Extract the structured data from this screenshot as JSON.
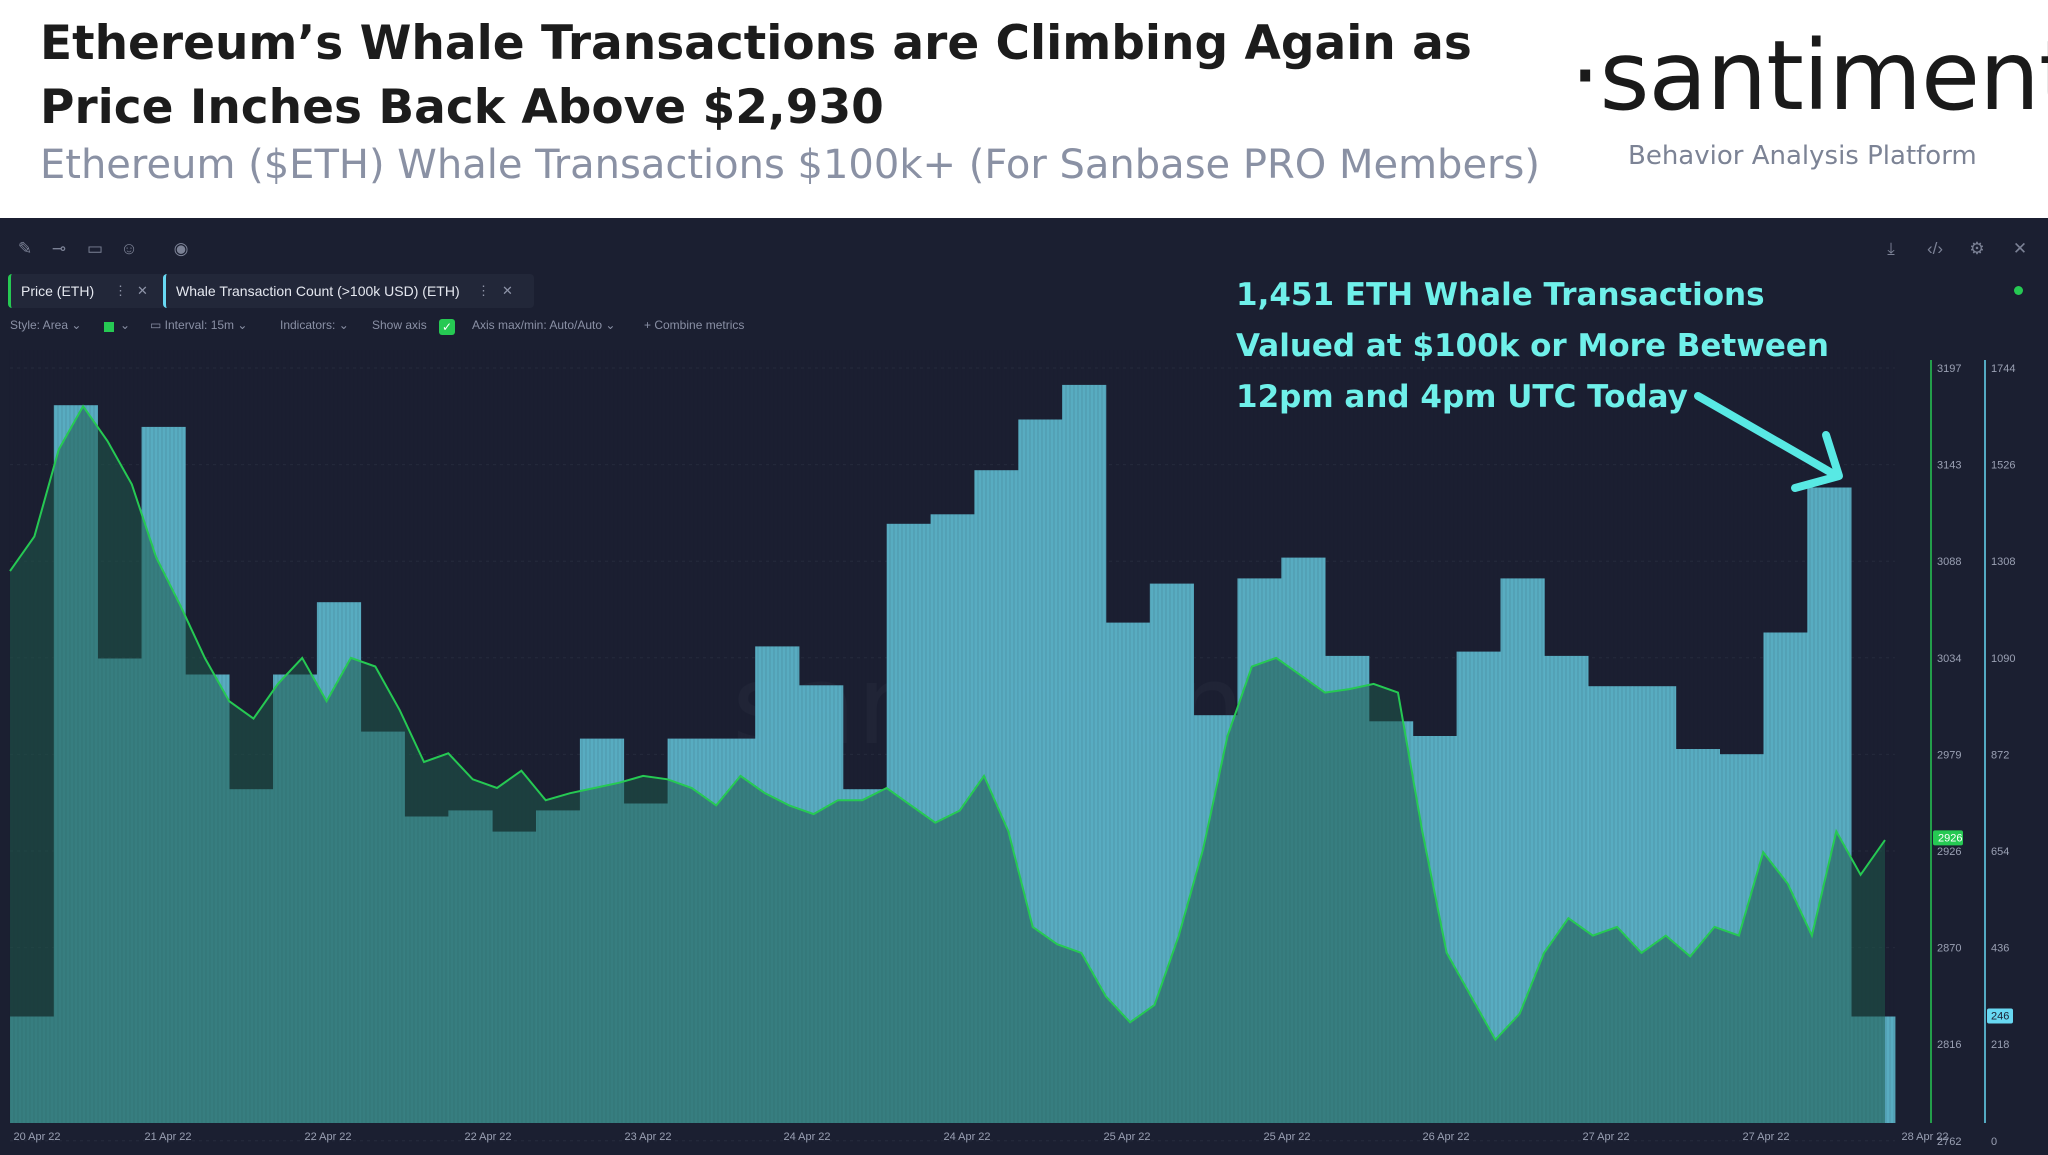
{
  "header": {
    "title": "Ethereum’s Whale Transactions are Climbing Again as Price Inches Back Above $2,930",
    "subtitle": "Ethereum ($ETH) Whale Transactions $100k+ (For Sanbase PRO Members)",
    "brand": "·santiment·",
    "brand_tagline": "Behavior Analysis Platform"
  },
  "toolbar": {
    "left_icons": [
      "pencil-icon",
      "line-icon",
      "note-icon",
      "emoji-icon",
      "eye-icon"
    ],
    "right_icons": [
      "download-icon",
      "embed-icon",
      "gear-icon",
      "close-icon"
    ]
  },
  "metrics": {
    "price": {
      "label": "Price (ETH)",
      "color": "#26c953"
    },
    "whale": {
      "label": "Whale Transaction Count (>100k USD) (ETH)",
      "color": "#68d8f2"
    }
  },
  "settings": {
    "style": "Style: Area",
    "interval": "Interval: 15m",
    "indicators": "Indicators:",
    "show_axis": "Show axis",
    "axis_maxmin": "Axis max/min: Auto/Auto",
    "combine": "Combine metrics"
  },
  "annotation": {
    "lines": [
      "1,451 ETH Whale Transactions",
      "Valued at $100k or More Between",
      "12pm and 4pm UTC Today"
    ]
  },
  "chart_data": {
    "type": "bar",
    "title": "",
    "x_ticks": [
      "20 Apr 22",
      "21 Apr 22",
      "22 Apr 22",
      "22 Apr 22",
      "23 Apr 22",
      "24 Apr 22",
      "24 Apr 22",
      "25 Apr 22",
      "25 Apr 22",
      "26 Apr 22",
      "27 Apr 22",
      "27 Apr 22",
      "28 Apr 22"
    ],
    "price_axis": {
      "ticks": [
        "3197",
        "3143",
        "3088",
        "3034",
        "2979",
        "2926",
        "2870",
        "2816",
        "2762"
      ],
      "current": "2926",
      "ylim": [
        2762,
        3197
      ]
    },
    "count_axis": {
      "ticks": [
        "1744",
        "1526",
        "1308",
        "1090",
        "872",
        "654",
        "436",
        "218",
        "0"
      ],
      "current": "246",
      "ylim": [
        0,
        1744
      ]
    },
    "series": [
      {
        "name": "Whale Transaction Count (>100k USD) (ETH)",
        "style": "bar",
        "values": [
          246,
          1658,
          1073,
          1608,
          1036,
          771,
          1036,
          1203,
          904,
          708,
          722,
          673,
          722,
          888,
          738,
          888,
          888,
          1101,
          1011,
          771,
          1384,
          1406,
          1508,
          1625,
          1705,
          1156,
          1246,
          942,
          1258,
          1306,
          1079,
          928,
          894,
          1089,
          1258,
          1079,
          1009,
          1009,
          864,
          852,
          1133,
          1468,
          246
        ],
        "last_value": 1451
      },
      {
        "name": "Price (ETH)",
        "style": "line",
        "values": [
          3080,
          3100,
          3150,
          3175,
          3155,
          3130,
          3088,
          3060,
          3030,
          3005,
          2995,
          3015,
          3030,
          3005,
          3030,
          3025,
          3000,
          2970,
          2975,
          2960,
          2955,
          2965,
          2948,
          2952,
          2955,
          2958,
          2962,
          2960,
          2955,
          2945,
          2962,
          2952,
          2945,
          2940,
          2948,
          2948,
          2955,
          2945,
          2935,
          2942,
          2962,
          2930,
          2875,
          2865,
          2860,
          2835,
          2820,
          2830,
          2870,
          2920,
          2985,
          3025,
          3030,
          3020,
          3010,
          3012,
          3015,
          3010,
          2930,
          2860,
          2835,
          2810,
          2825,
          2860,
          2880,
          2870,
          2875,
          2860,
          2870,
          2858,
          2875,
          2870,
          2918,
          2900,
          2870,
          2930,
          2905,
          2925
        ],
        "last_value": 2926
      }
    ]
  }
}
